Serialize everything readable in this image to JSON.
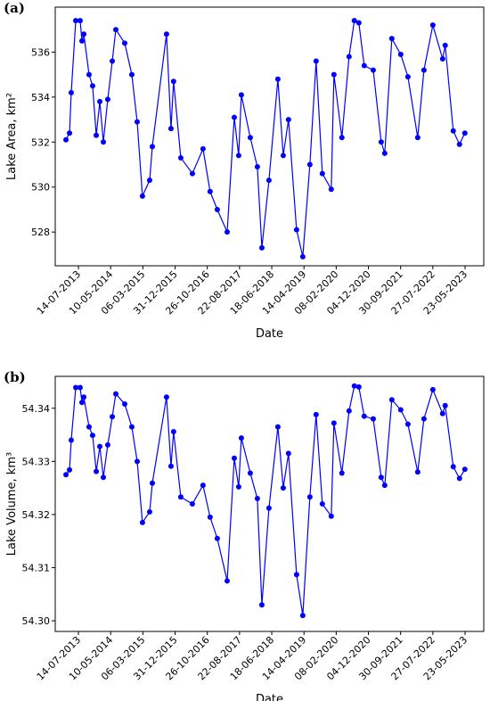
{
  "chart_data": [
    {
      "type": "line",
      "label": "(a)",
      "y_label": "Lake Area, km²",
      "x_label": "Date",
      "color": "#0000ff",
      "x": [
        "20-03-2013",
        "22-04-2013",
        "08-05-2013",
        "19-06-2013",
        "30-07-2013",
        "16-08-2013",
        "02-09-2013",
        "21-10-2013",
        "23-11-2013",
        "27-12-2013",
        "29-01-2014",
        "03-03-2014",
        "13-04-2014",
        "25-05-2014",
        "27-06-2014",
        "18-09-2014",
        "23-11-2014",
        "12-01-2015",
        "02-03-2015",
        "08-05-2015",
        "02-06-2015",
        "12-10-2015",
        "23-11-2015",
        "17-12-2015",
        "22-02-2016",
        "09-06-2016",
        "16-09-2016",
        "21-11-2016",
        "27-01-2017",
        "29-04-2017",
        "04-07-2017",
        "14-08-2017",
        "08-09-2017",
        "30-11-2017",
        "04-02-2018",
        "18-03-2018",
        "23-05-2018",
        "14-08-2018",
        "03-10-2018",
        "21-11-2018",
        "04-02-2019",
        "03-04-2019",
        "08-06-2019",
        "05-08-2019",
        "02-10-2019",
        "24-12-2019",
        "18-01-2020",
        "01-04-2020",
        "07-06-2020",
        "26-07-2020",
        "06-09-2020",
        "26-10-2020",
        "18-01-2021",
        "02-04-2021",
        "05-05-2021",
        "10-07-2021",
        "01-10-2021",
        "07-12-2021",
        "08-03-2022",
        "05-05-2022",
        "27-07-2022",
        "26-10-2022",
        "19-11-2022",
        "02-02-2023",
        "01-04-2023",
        "21-05-2023"
      ],
      "values": [
        532.1,
        532.4,
        534.2,
        537.4,
        537.4,
        536.5,
        536.8,
        535.0,
        534.5,
        532.3,
        533.8,
        532.0,
        533.9,
        535.6,
        537.0,
        536.4,
        535.0,
        532.9,
        529.6,
        530.3,
        531.8,
        536.8,
        532.6,
        534.7,
        531.3,
        530.6,
        531.7,
        529.8,
        529.0,
        528.0,
        533.1,
        531.4,
        534.1,
        532.2,
        530.9,
        527.3,
        530.3,
        534.8,
        531.4,
        533.0,
        528.1,
        526.9,
        531.0,
        535.6,
        530.6,
        529.9,
        535.0,
        532.2,
        535.8,
        537.4,
        537.3,
        535.4,
        535.2,
        532.0,
        531.5,
        536.6,
        535.9,
        534.9,
        532.2,
        535.2,
        537.2,
        535.7,
        536.3,
        532.5,
        531.9,
        532.4
      ],
      "xlim": [
        "10-12-2012",
        "13-11-2023"
      ],
      "xticks": [
        "14-07-2013",
        "10-05-2014",
        "06-03-2015",
        "31-12-2015",
        "26-10-2016",
        "22-08-2017",
        "18-06-2018",
        "14-04-2019",
        "08-02-2020",
        "04-12-2020",
        "30-09-2021",
        "27-07-2022",
        "23-05-2023"
      ],
      "ylim": [
        526.5,
        538
      ],
      "yticks": [
        528,
        530,
        532,
        534,
        536
      ],
      "grid": false
    },
    {
      "type": "line",
      "label": "(b)",
      "y_label": "Lake Volume, km³",
      "x_label": "Date",
      "color": "#0000ff",
      "x": [
        "20-03-2013",
        "22-04-2013",
        "08-05-2013",
        "19-06-2013",
        "30-07-2013",
        "16-08-2013",
        "02-09-2013",
        "21-10-2013",
        "23-11-2013",
        "27-12-2013",
        "29-01-2014",
        "03-03-2014",
        "13-04-2014",
        "25-05-2014",
        "27-06-2014",
        "18-09-2014",
        "23-11-2014",
        "12-01-2015",
        "02-03-2015",
        "08-05-2015",
        "02-06-2015",
        "12-10-2015",
        "23-11-2015",
        "17-12-2015",
        "22-02-2016",
        "09-06-2016",
        "16-09-2016",
        "21-11-2016",
        "27-01-2017",
        "29-04-2017",
        "04-07-2017",
        "14-08-2017",
        "08-09-2017",
        "30-11-2017",
        "04-02-2018",
        "18-03-2018",
        "23-05-2018",
        "14-08-2018",
        "03-10-2018",
        "21-11-2018",
        "04-02-2019",
        "03-04-2019",
        "08-06-2019",
        "05-08-2019",
        "02-10-2019",
        "24-12-2019",
        "18-01-2020",
        "01-04-2020",
        "07-06-2020",
        "26-07-2020",
        "06-09-2020",
        "26-10-2020",
        "18-01-2021",
        "02-04-2021",
        "05-05-2021",
        "10-07-2021",
        "01-10-2021",
        "07-12-2021",
        "08-03-2022",
        "05-05-2022",
        "27-07-2022",
        "26-10-2022",
        "19-11-2022",
        "02-02-2023",
        "01-04-2023",
        "21-05-2023"
      ],
      "values": [
        54.3275,
        54.3284,
        54.334,
        54.3439,
        54.3439,
        54.3411,
        54.3421,
        54.3365,
        54.3349,
        54.3281,
        54.3328,
        54.327,
        54.3331,
        54.3384,
        54.3427,
        54.3408,
        54.3365,
        54.33,
        54.3185,
        54.3205,
        54.3259,
        54.3421,
        54.3291,
        54.3356,
        54.3233,
        54.322,
        54.3255,
        54.3195,
        54.3155,
        54.3075,
        54.3306,
        54.3252,
        54.3344,
        54.3278,
        54.323,
        54.303,
        54.3212,
        54.3365,
        54.325,
        54.3315,
        54.3087,
        54.301,
        54.3233,
        54.3388,
        54.322,
        54.3197,
        54.3372,
        54.3278,
        54.3395,
        54.3442,
        54.344,
        54.3385,
        54.338,
        54.327,
        54.3255,
        54.3416,
        54.3397,
        54.337,
        54.328,
        54.338,
        54.3435,
        54.339,
        54.3405,
        54.329,
        54.3268,
        54.3285
      ],
      "xlim": [
        "10-12-2012",
        "13-11-2023"
      ],
      "xticks": [
        "14-07-2013",
        "10-05-2014",
        "06-03-2015",
        "31-12-2015",
        "26-10-2016",
        "22-08-2017",
        "18-06-2018",
        "14-04-2019",
        "08-02-2020",
        "04-12-2020",
        "30-09-2021",
        "27-07-2022",
        "23-05-2023"
      ],
      "ylim": [
        54.298,
        54.346
      ],
      "yticks": [
        {
          "value": 54.3,
          "label": "54.30"
        },
        54.31,
        54.32,
        54.33,
        54.34
      ],
      "grid": false
    }
  ]
}
